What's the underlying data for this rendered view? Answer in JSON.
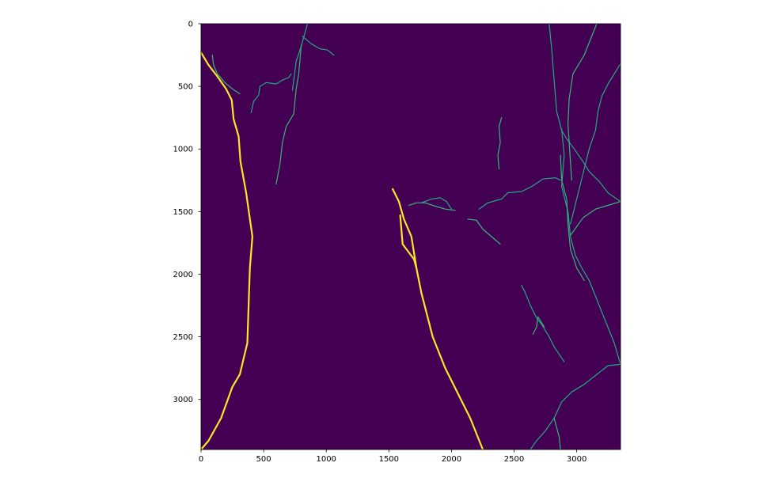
{
  "chart_data": {
    "type": "heatmap",
    "title": "",
    "xlabel": "",
    "ylabel": "",
    "xlim": [
      0,
      3350
    ],
    "ylim": [
      3400,
      0
    ],
    "y_inverted": true,
    "grid": false,
    "legend": "none",
    "colormap": "viridis",
    "colors": {
      "background": "#440154",
      "medium_value": "#35b779",
      "medium_light_value": "#22a884",
      "high_value": "#fde725"
    },
    "x_ticks": [
      {
        "value": 0,
        "label": "0"
      },
      {
        "value": 500,
        "label": "500"
      },
      {
        "value": 1000,
        "label": "1000"
      },
      {
        "value": 1500,
        "label": "1500"
      },
      {
        "value": 2000,
        "label": "2000"
      },
      {
        "value": 2500,
        "label": "2500"
      },
      {
        "value": 3000,
        "label": "3000"
      }
    ],
    "y_ticks": [
      {
        "value": 0,
        "label": "0"
      },
      {
        "value": 500,
        "label": "500"
      },
      {
        "value": 1000,
        "label": "1000"
      },
      {
        "value": 1500,
        "label": "1500"
      },
      {
        "value": 2000,
        "label": "2000"
      },
      {
        "value": 2500,
        "label": "2500"
      },
      {
        "value": 3000,
        "label": "3000"
      }
    ],
    "traces": [
      {
        "level": "high",
        "points": [
          [
            0,
            230
          ],
          [
            60,
            330
          ],
          [
            130,
            420
          ],
          [
            200,
            520
          ],
          [
            245,
            610
          ],
          [
            260,
            760
          ],
          [
            300,
            900
          ],
          [
            315,
            1100
          ],
          [
            360,
            1350
          ],
          [
            410,
            1700
          ],
          [
            390,
            1950
          ],
          [
            380,
            2250
          ],
          [
            370,
            2550
          ],
          [
            310,
            2800
          ],
          [
            250,
            2900
          ],
          [
            160,
            3150
          ],
          [
            60,
            3330
          ],
          [
            0,
            3400
          ]
        ]
      },
      {
        "level": "high",
        "points": [
          [
            1530,
            1320
          ],
          [
            1580,
            1420
          ],
          [
            1620,
            1560
          ],
          [
            1680,
            1700
          ],
          [
            1720,
            1950
          ],
          [
            1760,
            2150
          ],
          [
            1850,
            2500
          ],
          [
            1950,
            2750
          ],
          [
            2050,
            2950
          ],
          [
            2150,
            3150
          ],
          [
            2250,
            3400
          ]
        ]
      },
      {
        "level": "high",
        "points": [
          [
            1590,
            1530
          ],
          [
            1610,
            1760
          ],
          [
            1700,
            1880
          ],
          [
            1720,
            1950
          ]
        ]
      },
      {
        "level": "medium",
        "points": [
          [
            730,
            530
          ],
          [
            760,
            300
          ],
          [
            800,
            180
          ],
          [
            850,
            0
          ]
        ]
      },
      {
        "level": "medium",
        "points": [
          [
            600,
            1280
          ],
          [
            630,
            1120
          ],
          [
            650,
            950
          ],
          [
            680,
            820
          ],
          [
            740,
            720
          ],
          [
            760,
            520
          ],
          [
            780,
            400
          ],
          [
            800,
            170
          ]
        ]
      },
      {
        "level": "medium",
        "points": [
          [
            810,
            100
          ],
          [
            880,
            160
          ],
          [
            950,
            200
          ],
          [
            1010,
            210
          ],
          [
            1060,
            250
          ]
        ]
      },
      {
        "level": "medium",
        "points": [
          [
            90,
            250
          ],
          [
            100,
            330
          ],
          [
            130,
            400
          ],
          [
            190,
            470
          ],
          [
            250,
            520
          ],
          [
            310,
            560
          ]
        ]
      },
      {
        "level": "medium",
        "points": [
          [
            400,
            710
          ],
          [
            420,
            620
          ],
          [
            460,
            570
          ],
          [
            470,
            500
          ],
          [
            520,
            470
          ],
          [
            600,
            480
          ],
          [
            650,
            450
          ],
          [
            700,
            430
          ],
          [
            720,
            400
          ]
        ]
      },
      {
        "level": "medium",
        "points": [
          [
            2400,
            750
          ],
          [
            2380,
            820
          ],
          [
            2390,
            950
          ],
          [
            2370,
            1050
          ],
          [
            2380,
            1160
          ]
        ]
      },
      {
        "level": "medium",
        "points": [
          [
            2780,
            0
          ],
          [
            2800,
            200
          ],
          [
            2820,
            450
          ],
          [
            2840,
            700
          ],
          [
            2880,
            850
          ],
          [
            2920,
            920
          ],
          [
            2980,
            1000
          ],
          [
            3050,
            1100
          ],
          [
            3100,
            1180
          ],
          [
            3180,
            1260
          ],
          [
            3250,
            1350
          ],
          [
            3350,
            1420
          ]
        ]
      },
      {
        "level": "medium",
        "points": [
          [
            2960,
            1250
          ],
          [
            2950,
            1100
          ],
          [
            2940,
            950
          ],
          [
            2930,
            800
          ],
          [
            2940,
            600
          ],
          [
            2970,
            400
          ],
          [
            3060,
            250
          ],
          [
            3160,
            0
          ]
        ]
      },
      {
        "level": "medium",
        "points": [
          [
            2950,
            1600
          ],
          [
            3000,
            1400
          ],
          [
            3050,
            1200
          ],
          [
            3100,
            1000
          ],
          [
            3150,
            850
          ],
          [
            3170,
            700
          ],
          [
            3200,
            580
          ],
          [
            3250,
            480
          ],
          [
            3350,
            320
          ]
        ]
      },
      {
        "level": "medium",
        "points": [
          [
            2950,
            1690
          ],
          [
            3050,
            1550
          ],
          [
            3150,
            1480
          ],
          [
            3350,
            1420
          ]
        ]
      },
      {
        "level": "medium",
        "points": [
          [
            2880,
            840
          ],
          [
            2900,
            1050
          ],
          [
            2880,
            1300
          ],
          [
            2930,
            1500
          ],
          [
            2950,
            1700
          ],
          [
            2990,
            1850
          ],
          [
            3040,
            1950
          ],
          [
            3100,
            2050
          ],
          [
            3160,
            2200
          ],
          [
            3220,
            2350
          ],
          [
            3300,
            2550
          ],
          [
            3350,
            2720
          ]
        ]
      },
      {
        "level": "medium",
        "points": [
          [
            2870,
            1050
          ],
          [
            2880,
            1250
          ],
          [
            2920,
            1400
          ],
          [
            2930,
            1600
          ],
          [
            2950,
            1800
          ],
          [
            3000,
            1950
          ],
          [
            3060,
            2050
          ]
        ]
      },
      {
        "level": "medium",
        "points": [
          [
            2220,
            1480
          ],
          [
            2290,
            1430
          ],
          [
            2400,
            1400
          ],
          [
            2450,
            1350
          ],
          [
            2560,
            1340
          ],
          [
            2640,
            1300
          ],
          [
            2730,
            1240
          ],
          [
            2830,
            1230
          ],
          [
            2870,
            1250
          ]
        ]
      },
      {
        "level": "medium",
        "points": [
          [
            1660,
            1450
          ],
          [
            1720,
            1430
          ],
          [
            1790,
            1430
          ],
          [
            1880,
            1460
          ],
          [
            1950,
            1480
          ],
          [
            2030,
            1490
          ]
        ]
      },
      {
        "level": "medium",
        "points": [
          [
            1760,
            1430
          ],
          [
            1840,
            1400
          ],
          [
            1910,
            1390
          ],
          [
            1960,
            1420
          ],
          [
            2000,
            1480
          ]
        ]
      },
      {
        "level": "medium",
        "points": [
          [
            2130,
            1560
          ],
          [
            2200,
            1570
          ],
          [
            2250,
            1640
          ],
          [
            2320,
            1700
          ],
          [
            2390,
            1760
          ]
        ]
      },
      {
        "level": "medium",
        "points": [
          [
            2560,
            2090
          ],
          [
            2590,
            2150
          ],
          [
            2630,
            2250
          ],
          [
            2680,
            2350
          ],
          [
            2720,
            2400
          ],
          [
            2780,
            2500
          ],
          [
            2820,
            2580
          ],
          [
            2860,
            2640
          ],
          [
            2900,
            2700
          ]
        ]
      },
      {
        "level": "medium",
        "points": [
          [
            2650,
            2480
          ],
          [
            2680,
            2420
          ],
          [
            2690,
            2340
          ],
          [
            2740,
            2420
          ]
        ]
      },
      {
        "level": "medium",
        "points": [
          [
            2630,
            3400
          ],
          [
            2680,
            3330
          ],
          [
            2750,
            3250
          ],
          [
            2820,
            3150
          ],
          [
            2880,
            3020
          ],
          [
            2960,
            2940
          ],
          [
            3060,
            2880
          ],
          [
            3160,
            2800
          ],
          [
            3250,
            2730
          ],
          [
            3350,
            2720
          ]
        ]
      },
      {
        "level": "medium",
        "points": [
          [
            2820,
            3150
          ],
          [
            2860,
            3300
          ],
          [
            2870,
            3400
          ]
        ]
      }
    ]
  }
}
